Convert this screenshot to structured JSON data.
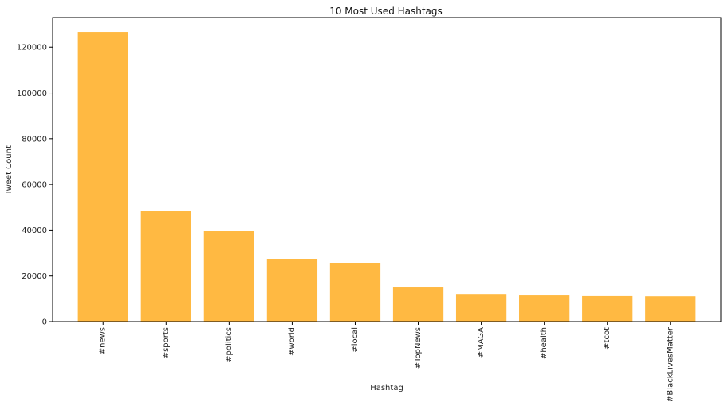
{
  "chart_data": {
    "type": "bar",
    "title": "10 Most Used Hashtags",
    "xlabel": "Hashtag",
    "ylabel": "Tweet Count",
    "categories": [
      "#news",
      "#sports",
      "#politics",
      "#world",
      "#local",
      "#TopNews",
      "#MAGA",
      "#health",
      "#tcot",
      "#BlackLivesMatter"
    ],
    "values": [
      126700,
      48200,
      39500,
      27500,
      25800,
      15000,
      11800,
      11500,
      11200,
      11100
    ],
    "ylim": [
      0,
      133000
    ],
    "yticks": [
      0,
      20000,
      40000,
      60000,
      80000,
      100000,
      120000
    ],
    "grid": false,
    "bar_color": "#ffb942",
    "x_tick_rotation": 90
  }
}
